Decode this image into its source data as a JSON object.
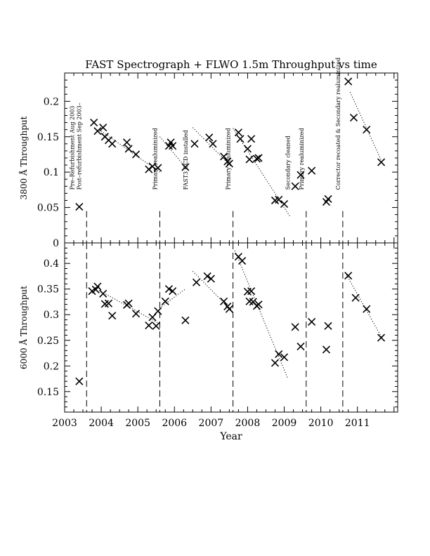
{
  "chart_data": {
    "type": "scatter",
    "title": "FAST Spectrograph + FLWO 1.5m Throughput vs time",
    "xlabel": "Year",
    "xlim": [
      2003,
      2012.1
    ],
    "xticks": [
      "2003",
      "2004",
      "2005",
      "2006",
      "2007",
      "2008",
      "2009",
      "2010",
      "2011"
    ],
    "grid": false,
    "events": [
      {
        "x": 2003.6,
        "label": "Pre–Refurbishment Aug 2003"
      },
      {
        "x": 2003.6,
        "label": "Post–refurbishment Sep 2003–"
      },
      {
        "x": 2005.6,
        "label": "Primary realuminized"
      },
      {
        "x": 2007.6,
        "label": "Primary realuminized"
      },
      {
        "x": 2009.6,
        "label": "Primary realuminized"
      },
      {
        "x": 2010.6,
        "label": "Corrector recoated & Secondary realuminized"
      }
    ],
    "annotations": [
      {
        "x": 2006.3,
        "label": "FAST3 CCD installed"
      },
      {
        "x": 2009.1,
        "label": "Secondary cleaned"
      }
    ],
    "panels": [
      {
        "ylabel": "3800 Å Throughput",
        "ylim": [
          0,
          0.24
        ],
        "yticks": [
          "0",
          "0.05",
          "0.1",
          "0.15",
          "0.2"
        ],
        "points": {
          "x": [
            2003.4,
            2003.8,
            2003.9,
            2004.05,
            2004.1,
            2004.2,
            2004.3,
            2004.7,
            2004.75,
            2004.95,
            2005.3,
            2005.4,
            2005.55,
            2005.85,
            2005.9,
            2005.95,
            2006.3,
            2006.55,
            2006.95,
            2007.05,
            2007.35,
            2007.45,
            2007.5,
            2007.75,
            2007.8,
            2008.0,
            2008.05,
            2008.1,
            2008.25,
            2008.3,
            2008.75,
            2008.85,
            2009.0,
            2009.3,
            2009.45,
            2009.75,
            2010.15,
            2010.2,
            2010.75,
            2010.9,
            2011.25,
            2011.65
          ],
          "y": [
            0.051,
            0.17,
            0.158,
            0.163,
            0.15,
            0.145,
            0.14,
            0.142,
            0.133,
            0.125,
            0.104,
            0.108,
            0.106,
            0.137,
            0.142,
            0.137,
            0.107,
            0.14,
            0.149,
            0.14,
            0.122,
            0.115,
            0.112,
            0.156,
            0.147,
            0.133,
            0.118,
            0.147,
            0.119,
            0.12,
            0.06,
            0.061,
            0.055,
            0.08,
            0.096,
            0.102,
            0.058,
            0.062,
            0.228,
            0.177,
            0.16,
            0.114
          ]
        },
        "trends": [
          [
            [
              2004.0,
              0.158
            ],
            [
              2005.6,
              0.1
            ]
          ],
          [
            [
              2005.6,
              0.15
            ],
            [
              2006.3,
              0.107
            ]
          ],
          [
            [
              2006.5,
              0.163
            ],
            [
              2007.55,
              0.108
            ]
          ],
          [
            [
              2007.6,
              0.162
            ],
            [
              2009.15,
              0.038
            ]
          ],
          [
            [
              2010.8,
              0.213
            ],
            [
              2011.7,
              0.111
            ]
          ]
        ]
      },
      {
        "ylabel": "6000 Å Throughput",
        "ylim": [
          0.11,
          0.44
        ],
        "yticks": [
          "0.15",
          "0.2",
          "0.25",
          "0.3",
          "0.35",
          "0.4"
        ],
        "points": {
          "x": [
            2003.4,
            2003.75,
            2003.85,
            2003.9,
            2004.05,
            2004.1,
            2004.2,
            2004.3,
            2004.7,
            2004.75,
            2004.95,
            2005.3,
            2005.4,
            2005.5,
            2005.55,
            2005.75,
            2005.85,
            2005.95,
            2006.3,
            2006.6,
            2006.9,
            2007.0,
            2007.35,
            2007.45,
            2007.5,
            2007.75,
            2007.85,
            2008.0,
            2008.05,
            2008.1,
            2008.15,
            2008.25,
            2008.3,
            2008.75,
            2008.85,
            2009.0,
            2009.3,
            2009.45,
            2009.75,
            2010.15,
            2010.2,
            2010.75,
            2010.95,
            2011.25,
            2011.65
          ],
          "y": [
            0.17,
            0.346,
            0.349,
            0.355,
            0.341,
            0.321,
            0.322,
            0.298,
            0.319,
            0.322,
            0.302,
            0.279,
            0.295,
            0.278,
            0.307,
            0.326,
            0.35,
            0.346,
            0.289,
            0.363,
            0.375,
            0.37,
            0.326,
            0.316,
            0.311,
            0.413,
            0.405,
            0.345,
            0.326,
            0.346,
            0.325,
            0.317,
            0.32,
            0.206,
            0.223,
            0.217,
            0.276,
            0.238,
            0.286,
            0.232,
            0.278,
            0.376,
            0.333,
            0.311,
            0.255
          ]
        },
        "trends": [
          [
            [
              2004.0,
              0.345
            ],
            [
              2005.6,
              0.282
            ]
          ],
          [
            [
              2005.65,
              0.316
            ],
            [
              2006.3,
              0.35
            ]
          ],
          [
            [
              2006.5,
              0.385
            ],
            [
              2007.6,
              0.305
            ]
          ],
          [
            [
              2007.65,
              0.425
            ],
            [
              2009.1,
              0.175
            ]
          ],
          [
            [
              2010.7,
              0.378
            ],
            [
              2011.7,
              0.251
            ]
          ]
        ]
      }
    ]
  }
}
